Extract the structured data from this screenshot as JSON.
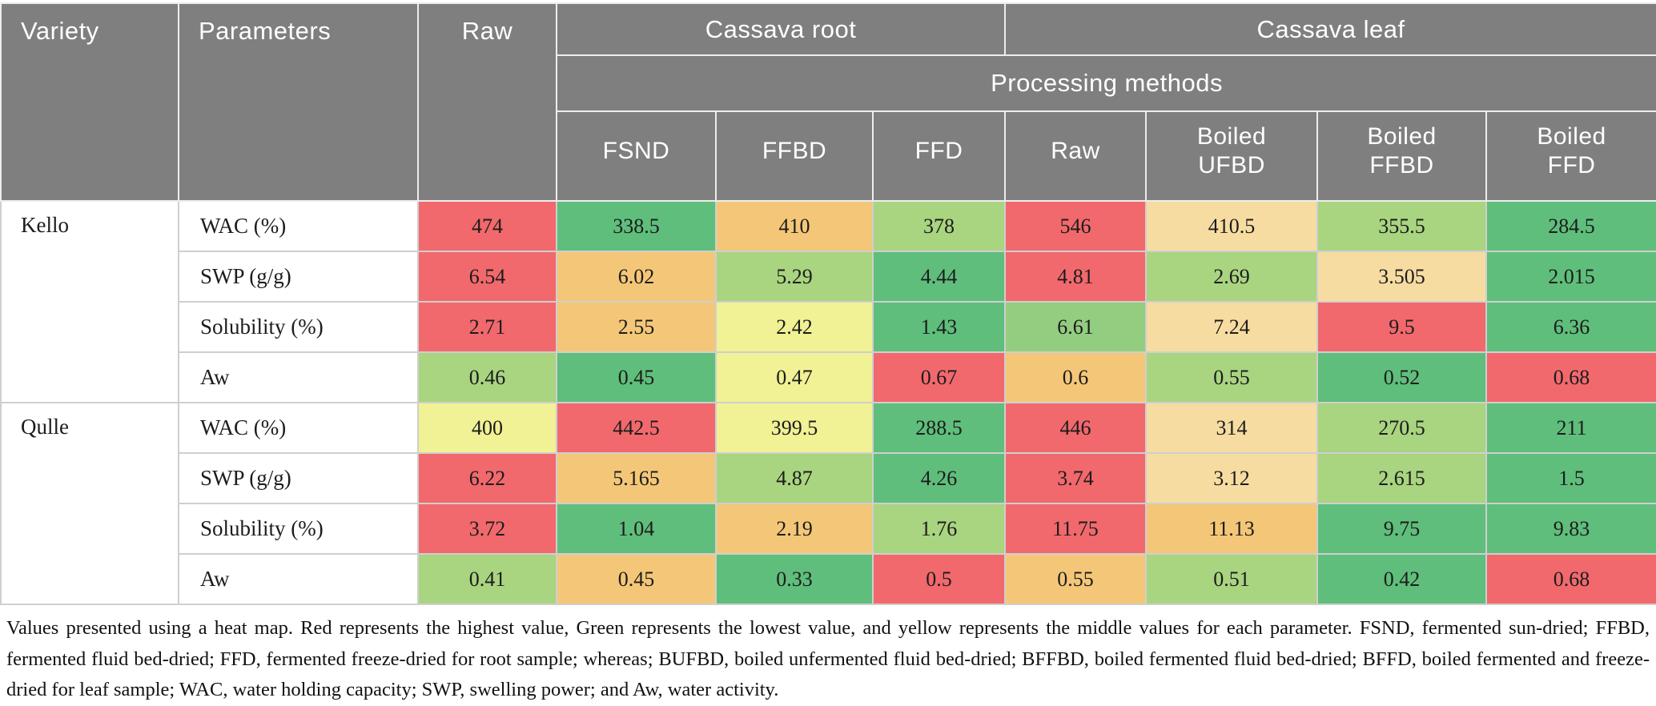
{
  "palette": {
    "header_bg": "#7f7f7f",
    "header_text": "#ffffff",
    "red": "#F1696D",
    "green": "#5FBE7B",
    "light_green": "#A9D480",
    "light_green2": "#93CD80",
    "yellow": "#F1F195",
    "orange": "#F4C778",
    "cream": "#F7DCA2"
  },
  "chart_data": {
    "type": "heatmap",
    "header": {
      "variety": "Variety",
      "parameters": "Parameters",
      "raw_root": "Raw",
      "cassava_root": "Cassava root",
      "cassava_leaf": "Cassava leaf",
      "processing_methods": "Processing methods",
      "method_columns": [
        "FSND",
        "FFBD",
        "FFD",
        "Raw",
        "Boiled UFBD",
        "Boiled FFBD",
        "Boiled FFD"
      ]
    },
    "value_columns": [
      "Raw (root)",
      "FSND",
      "FFBD",
      "FFD",
      "Raw (leaf)",
      "Boiled UFBD",
      "Boiled FFBD",
      "Boiled FFD"
    ],
    "groups": [
      {
        "variety": "Kello",
        "rows": [
          {
            "parameter": "WAC (%)",
            "cells": [
              {
                "v": "474",
                "c": "red"
              },
              {
                "v": "338.5",
                "c": "green"
              },
              {
                "v": "410",
                "c": "orange"
              },
              {
                "v": "378",
                "c": "light_green"
              },
              {
                "v": "546",
                "c": "red"
              },
              {
                "v": "410.5",
                "c": "cream"
              },
              {
                "v": "355.5",
                "c": "light_green"
              },
              {
                "v": "284.5",
                "c": "green"
              }
            ]
          },
          {
            "parameter": "SWP (g/g)",
            "cells": [
              {
                "v": "6.54",
                "c": "red"
              },
              {
                "v": "6.02",
                "c": "orange"
              },
              {
                "v": "5.29",
                "c": "light_green"
              },
              {
                "v": "4.44",
                "c": "green"
              },
              {
                "v": "4.81",
                "c": "red"
              },
              {
                "v": "2.69",
                "c": "light_green"
              },
              {
                "v": "3.505",
                "c": "cream"
              },
              {
                "v": "2.015",
                "c": "green"
              }
            ]
          },
          {
            "parameter": "Solubility (%)",
            "cells": [
              {
                "v": "2.71",
                "c": "red"
              },
              {
                "v": "2.55",
                "c": "orange"
              },
              {
                "v": "2.42",
                "c": "yellow"
              },
              {
                "v": "1.43",
                "c": "green"
              },
              {
                "v": "6.61",
                "c": "light_green2"
              },
              {
                "v": "7.24",
                "c": "cream"
              },
              {
                "v": "9.5",
                "c": "red"
              },
              {
                "v": "6.36",
                "c": "green"
              }
            ]
          },
          {
            "parameter": "Aw",
            "cells": [
              {
                "v": "0.46",
                "c": "light_green"
              },
              {
                "v": "0.45",
                "c": "green"
              },
              {
                "v": "0.47",
                "c": "yellow"
              },
              {
                "v": "0.67",
                "c": "red"
              },
              {
                "v": "0.6",
                "c": "orange"
              },
              {
                "v": "0.55",
                "c": "light_green"
              },
              {
                "v": "0.52",
                "c": "green"
              },
              {
                "v": "0.68",
                "c": "red"
              }
            ]
          }
        ]
      },
      {
        "variety": "Qulle",
        "rows": [
          {
            "parameter": "WAC (%)",
            "cells": [
              {
                "v": "400",
                "c": "yellow"
              },
              {
                "v": "442.5",
                "c": "red"
              },
              {
                "v": "399.5",
                "c": "yellow"
              },
              {
                "v": "288.5",
                "c": "green"
              },
              {
                "v": "446",
                "c": "red"
              },
              {
                "v": "314",
                "c": "cream"
              },
              {
                "v": "270.5",
                "c": "light_green"
              },
              {
                "v": "211",
                "c": "green"
              }
            ]
          },
          {
            "parameter": "SWP (g/g)",
            "cells": [
              {
                "v": "6.22",
                "c": "red"
              },
              {
                "v": "5.165",
                "c": "orange"
              },
              {
                "v": "4.87",
                "c": "light_green"
              },
              {
                "v": "4.26",
                "c": "green"
              },
              {
                "v": "3.74",
                "c": "red"
              },
              {
                "v": "3.12",
                "c": "cream"
              },
              {
                "v": "2.615",
                "c": "light_green"
              },
              {
                "v": "1.5",
                "c": "green"
              }
            ]
          },
          {
            "parameter": "Solubility (%)",
            "cells": [
              {
                "v": "3.72",
                "c": "red"
              },
              {
                "v": "1.04",
                "c": "green"
              },
              {
                "v": "2.19",
                "c": "orange"
              },
              {
                "v": "1.76",
                "c": "light_green"
              },
              {
                "v": "11.75",
                "c": "red"
              },
              {
                "v": "11.13",
                "c": "orange"
              },
              {
                "v": "9.75",
                "c": "green"
              },
              {
                "v": "9.83",
                "c": "green"
              }
            ]
          },
          {
            "parameter": "Aw",
            "cells": [
              {
                "v": "0.41",
                "c": "light_green"
              },
              {
                "v": "0.45",
                "c": "orange"
              },
              {
                "v": "0.33",
                "c": "green"
              },
              {
                "v": "0.5",
                "c": "red"
              },
              {
                "v": "0.55",
                "c": "orange"
              },
              {
                "v": "0.51",
                "c": "light_green"
              },
              {
                "v": "0.42",
                "c": "green"
              },
              {
                "v": "0.68",
                "c": "red"
              }
            ]
          }
        ]
      }
    ],
    "footnote": "Values presented using a heat map. Red represents the highest value, Green represents the lowest value, and yellow represents the middle values for each parameter. FSND, fermented sun-dried; FFBD, fermented fluid bed-dried; FFD, fermented freeze-dried for root sample; whereas; BUFBD, boiled unfermented fluid bed-dried; BFFBD, boiled fermented fluid bed-dried; BFFD, boiled fermented and freeze-dried for leaf sample; WAC, water holding capacity; SWP, swelling power; and Aw, water activity."
  }
}
